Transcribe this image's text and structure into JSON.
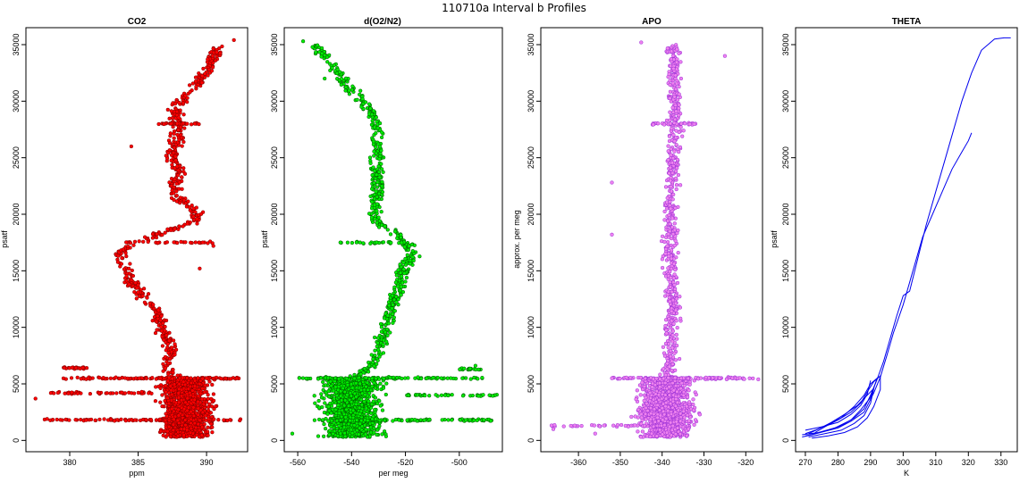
{
  "figure": {
    "title": "110710a   Interval b Profiles"
  },
  "chart_data": [
    {
      "type": "scatter",
      "title": "CO2",
      "xlabel": "ppm",
      "ylabel": "psatf",
      "xlim": [
        376.8,
        393.0
      ],
      "ylim": [
        -1000,
        36500
      ],
      "xticks": [
        380,
        385,
        390
      ],
      "yticks": [
        0,
        5000,
        10000,
        15000,
        20000,
        25000,
        30000,
        35000
      ],
      "color": "#ff0000",
      "edge_color": "#7a0000",
      "profile": [
        [
          0,
          389
        ],
        [
          300,
          388.5
        ],
        [
          800,
          387
        ],
        [
          1500,
          386
        ],
        [
          2500,
          387.5
        ],
        [
          3500,
          388
        ],
        [
          4500,
          388
        ],
        [
          5400,
          388
        ],
        [
          6500,
          387
        ],
        [
          8000,
          387.5
        ],
        [
          9500,
          386.8
        ],
        [
          11000,
          386.5
        ],
        [
          12500,
          385.5
        ],
        [
          14000,
          384.5
        ],
        [
          15500,
          384
        ],
        [
          16500,
          383.5
        ],
        [
          17500,
          385
        ],
        [
          18500,
          387
        ],
        [
          19500,
          389.5
        ],
        [
          20500,
          389
        ],
        [
          21500,
          388
        ],
        [
          22500,
          387.5
        ],
        [
          23500,
          388
        ],
        [
          25000,
          387.5
        ],
        [
          26500,
          387.8
        ],
        [
          28000,
          388
        ],
        [
          29500,
          387.6
        ],
        [
          31000,
          389
        ],
        [
          32500,
          390
        ],
        [
          34000,
          390.5
        ],
        [
          35500,
          391
        ]
      ],
      "lowband": {
        "ymin": 300,
        "ymax": 5500,
        "xmin": 384.5,
        "xmax": 392.5,
        "center": 388.5
      },
      "bursts": [
        {
          "y": 5500,
          "xmin": 379.5,
          "xmax": 392.5,
          "n": 36
        },
        {
          "y": 1800,
          "xmin": 378,
          "xmax": 392.5,
          "n": 34
        },
        {
          "y": 4200,
          "xmin": 378.5,
          "xmax": 386,
          "n": 16
        },
        {
          "y": 6400,
          "xmin": 379.5,
          "xmax": 381.5,
          "n": 8
        },
        {
          "y": 28000,
          "xmin": 386.5,
          "xmax": 389.5,
          "n": 10
        },
        {
          "y": 17500,
          "xmin": 384,
          "xmax": 390.5,
          "n": 10
        }
      ],
      "outliers": [
        [
          3700,
          377.5
        ],
        [
          35400,
          392
        ],
        [
          17200,
          390.5
        ],
        [
          15200,
          389.5
        ],
        [
          26000,
          384.5
        ]
      ]
    },
    {
      "type": "scatter",
      "title": "d(O2/N2)",
      "xlabel": "per meg",
      "ylabel": "psatf",
      "xlim": [
        -565,
        -484
      ],
      "ylim": [
        -1000,
        36500
      ],
      "xticks": [
        -560,
        -540,
        -520,
        -500
      ],
      "yticks": [
        0,
        5000,
        10000,
        15000,
        20000,
        25000,
        30000,
        35000
      ],
      "color": "#00ee00",
      "edge_color": "#005500",
      "profile": [
        [
          0,
          -545
        ],
        [
          300,
          -543
        ],
        [
          800,
          -540
        ],
        [
          1500,
          -538
        ],
        [
          2500,
          -540
        ],
        [
          3500,
          -540
        ],
        [
          4500,
          -540
        ],
        [
          5400,
          -540
        ],
        [
          6500,
          -533
        ],
        [
          8000,
          -530
        ],
        [
          9500,
          -528
        ],
        [
          11000,
          -526
        ],
        [
          12500,
          -524
        ],
        [
          14000,
          -522
        ],
        [
          15500,
          -520
        ],
        [
          16500,
          -517
        ],
        [
          17500,
          -520
        ],
        [
          18500,
          -524
        ],
        [
          19500,
          -532
        ],
        [
          20500,
          -532
        ],
        [
          21500,
          -531
        ],
        [
          22500,
          -530
        ],
        [
          23500,
          -531
        ],
        [
          25000,
          -530
        ],
        [
          26500,
          -531
        ],
        [
          28000,
          -530
        ],
        [
          29500,
          -534
        ],
        [
          31000,
          -540
        ],
        [
          32500,
          -545
        ],
        [
          34000,
          -550
        ],
        [
          35500,
          -556
        ]
      ],
      "lowband": {
        "ymin": 300,
        "ymax": 5500,
        "xmin": -561,
        "xmax": -515,
        "center": -540
      },
      "bursts": [
        {
          "y": 5500,
          "xmin": -560,
          "xmax": -490,
          "n": 32
        },
        {
          "y": 1800,
          "xmin": -555,
          "xmax": -488,
          "n": 34
        },
        {
          "y": 4000,
          "xmin": -520,
          "xmax": -486,
          "n": 14
        },
        {
          "y": 6300,
          "xmin": -500,
          "xmax": -492,
          "n": 8
        },
        {
          "y": 17500,
          "xmin": -545,
          "xmax": -520,
          "n": 10
        }
      ],
      "outliers": [
        [
          600,
          -562
        ],
        [
          35300,
          -558
        ],
        [
          32000,
          -550
        ],
        [
          6600,
          -494
        ]
      ]
    },
    {
      "type": "scatter",
      "title": "APO",
      "xlabel": "",
      "ylabel": "approx. per meg",
      "xlim": [
        -369,
        -316
      ],
      "ylim": [
        -1000,
        36500
      ],
      "xticks": [
        -360,
        -350,
        -340,
        -330,
        -320
      ],
      "yticks": [
        0,
        5000,
        10000,
        15000,
        20000,
        25000,
        30000,
        35000
      ],
      "color": "#ee82ee",
      "edge_color": "#9b30d8",
      "profile": [
        [
          0,
          -339
        ],
        [
          1500,
          -339
        ],
        [
          3000,
          -339
        ],
        [
          5400,
          -339
        ],
        [
          7000,
          -338
        ],
        [
          9000,
          -338
        ],
        [
          11000,
          -337.5
        ],
        [
          13000,
          -337.5
        ],
        [
          15000,
          -338
        ],
        [
          17000,
          -338
        ],
        [
          19000,
          -338
        ],
        [
          21000,
          -338
        ],
        [
          23000,
          -337.5
        ],
        [
          25000,
          -337.5
        ],
        [
          27000,
          -337
        ],
        [
          29000,
          -337
        ],
        [
          31000,
          -337
        ],
        [
          33000,
          -337
        ],
        [
          35500,
          -337.5
        ]
      ],
      "lowband": {
        "ymin": 300,
        "ymax": 5500,
        "xmin": -352,
        "xmax": -324,
        "center": -339
      },
      "bursts": [
        {
          "y": 5500,
          "xmin": -352,
          "xmax": -318,
          "n": 34
        },
        {
          "y": 1300,
          "xmin": -367,
          "xmax": -340,
          "n": 14
        },
        {
          "y": 28000,
          "xmin": -343,
          "xmax": -332,
          "n": 10
        }
      ],
      "outliers": [
        [
          22800,
          -352
        ],
        [
          18200,
          -352
        ],
        [
          1000,
          -366
        ],
        [
          600,
          -356
        ],
        [
          5400,
          -317
        ],
        [
          35200,
          -345
        ],
        [
          34000,
          -325
        ]
      ]
    },
    {
      "type": "line",
      "title": "THETA",
      "xlabel": "K",
      "ylabel": "psatf",
      "xlim": [
        267,
        335
      ],
      "ylim": [
        -1000,
        36500
      ],
      "xticks": [
        270,
        280,
        290,
        300,
        310,
        320,
        330
      ],
      "yticks": [
        0,
        5000,
        10000,
        15000,
        20000,
        25000,
        30000,
        35000
      ],
      "color": "#0000ee",
      "series": [
        {
          "points": [
            [
              270,
              400
            ],
            [
              273,
              600
            ],
            [
              277,
              900
            ],
            [
              281,
              1300
            ],
            [
              285,
              2000
            ],
            [
              288,
              2800
            ],
            [
              290,
              4000
            ],
            [
              292,
              5400
            ],
            [
              294,
              7000
            ],
            [
              296,
              9000
            ],
            [
              298,
              11000
            ],
            [
              300,
              12800
            ],
            [
              301,
              13000
            ],
            [
              302,
              13200
            ],
            [
              304,
              15500
            ],
            [
              307,
              19000
            ],
            [
              310,
              22000
            ],
            [
              313,
              25000
            ],
            [
              316,
              28000
            ],
            [
              318,
              30000
            ],
            [
              321,
              32500
            ],
            [
              324,
              34500
            ],
            [
              328,
              35500
            ],
            [
              331,
              35600
            ],
            [
              333,
              35600
            ]
          ]
        },
        {
          "points": [
            [
              269,
              300
            ],
            [
              272,
              500
            ],
            [
              276,
              800
            ],
            [
              280,
              1100
            ],
            [
              284,
              1700
            ],
            [
              288,
              2500
            ],
            [
              291,
              4200
            ],
            [
              293,
              5600
            ],
            [
              295,
              7500
            ],
            [
              297,
              9500
            ],
            [
              300,
              12000
            ],
            [
              303,
              15000
            ],
            [
              306,
              18000
            ],
            [
              309,
              20000
            ],
            [
              312,
              22000
            ],
            [
              315,
              24000
            ],
            [
              318,
              25500
            ],
            [
              320,
              26500
            ],
            [
              321,
              27200
            ]
          ]
        },
        {
          "points": [
            [
              269,
              500
            ],
            [
              274,
              700
            ],
            [
              279,
              1100
            ],
            [
              284,
              1800
            ],
            [
              287,
              2700
            ],
            [
              290,
              3800
            ],
            [
              292,
              5500
            ],
            [
              290,
              5000
            ],
            [
              288,
              4000
            ],
            [
              285,
              3000
            ],
            [
              281,
              2000
            ],
            [
              277,
              1400
            ],
            [
              273,
              900
            ],
            [
              270,
              600
            ]
          ]
        },
        {
          "points": [
            [
              271,
              300
            ],
            [
              276,
              600
            ],
            [
              281,
              900
            ],
            [
              285,
              1500
            ],
            [
              288,
              2200
            ],
            [
              290,
              3300
            ],
            [
              291,
              4600
            ],
            [
              289,
              4000
            ],
            [
              286,
              3100
            ],
            [
              282,
              2300
            ],
            [
              278,
              1600
            ],
            [
              274,
              1000
            ],
            [
              271,
              600
            ]
          ]
        },
        {
          "points": [
            [
              272,
              200
            ],
            [
              277,
              400
            ],
            [
              282,
              700
            ],
            [
              286,
              1200
            ],
            [
              289,
              2000
            ],
            [
              291,
              3000
            ],
            [
              293,
              4500
            ],
            [
              293,
              5700
            ],
            [
              291,
              5200
            ],
            [
              289,
              4300
            ],
            [
              287,
              3300
            ],
            [
              284,
              2500
            ],
            [
              280,
              1800
            ],
            [
              276,
              1200
            ],
            [
              273,
              700
            ]
          ]
        },
        {
          "points": [
            [
              270,
              900
            ],
            [
              275,
              1200
            ],
            [
              280,
              1600
            ],
            [
              284,
              2300
            ],
            [
              287,
              3100
            ],
            [
              289,
              4100
            ],
            [
              290,
              5300
            ]
          ]
        }
      ]
    }
  ]
}
